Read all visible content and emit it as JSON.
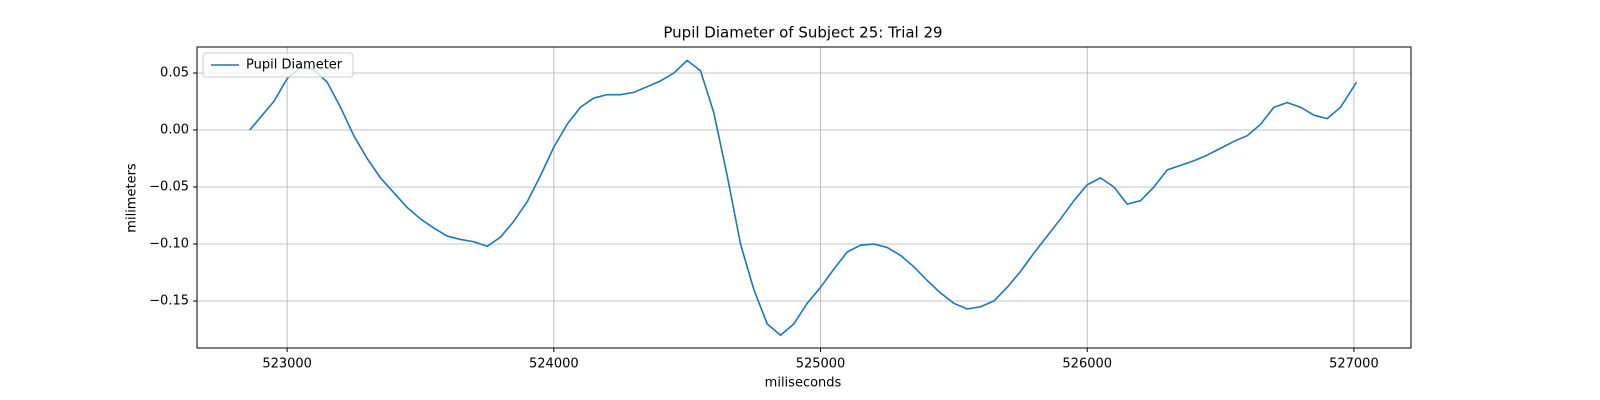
{
  "chart_data": {
    "type": "line",
    "title": "Pupil Diameter of Subject 25: Trial 29",
    "x_label": "miliseconds",
    "y_label": "milimeters",
    "x": [
      522860,
      522950,
      523000,
      523050,
      523100,
      523150,
      523200,
      523250,
      523300,
      523350,
      523400,
      523450,
      523500,
      523550,
      523600,
      523650,
      523700,
      523750,
      523800,
      523850,
      523900,
      523950,
      524000,
      524050,
      524100,
      524150,
      524200,
      524250,
      524300,
      524350,
      524400,
      524450,
      524500,
      524550,
      524600,
      524650,
      524700,
      524750,
      524800,
      524850,
      524900,
      524950,
      525000,
      525050,
      525100,
      525150,
      525200,
      525250,
      525300,
      525350,
      525400,
      525450,
      525500,
      525550,
      525600,
      525650,
      525700,
      525750,
      525800,
      525850,
      525900,
      525950,
      526000,
      526050,
      526100,
      526150,
      526200,
      526250,
      526300,
      526350,
      526400,
      526450,
      526500,
      526550,
      526600,
      526650,
      526700,
      526750,
      526800,
      526850,
      526900,
      526950,
      527010
    ],
    "series": [
      {
        "name": "Pupil Diameter",
        "color": "#1f77b4",
        "values": [
          0.0,
          0.025,
          0.045,
          0.055,
          0.053,
          0.042,
          0.02,
          -0.005,
          -0.025,
          -0.042,
          -0.055,
          -0.068,
          -0.078,
          -0.086,
          -0.093,
          -0.096,
          -0.098,
          -0.102,
          -0.094,
          -0.08,
          -0.063,
          -0.04,
          -0.015,
          0.005,
          0.02,
          0.028,
          0.031,
          0.031,
          0.033,
          0.038,
          0.043,
          0.05,
          0.061,
          0.052,
          0.015,
          -0.04,
          -0.1,
          -0.14,
          -0.17,
          -0.18,
          -0.17,
          -0.152,
          -0.138,
          -0.122,
          -0.107,
          -0.101,
          -0.1,
          -0.103,
          -0.11,
          -0.12,
          -0.132,
          -0.143,
          -0.152,
          -0.157,
          -0.155,
          -0.15,
          -0.138,
          -0.124,
          -0.108,
          -0.093,
          -0.078,
          -0.062,
          -0.048,
          -0.042,
          -0.05,
          -0.065,
          -0.062,
          -0.05,
          -0.035,
          -0.031,
          -0.027,
          -0.022,
          -0.016,
          -0.01,
          -0.005,
          0.005,
          0.02,
          0.024,
          0.02,
          0.013,
          0.01,
          0.02,
          0.042
        ]
      }
    ],
    "xlim": [
      522662,
      527214
    ],
    "ylim": [
      -0.1912,
      0.0728
    ],
    "xticks": [
      523000,
      524000,
      525000,
      526000,
      527000
    ],
    "yticks": [
      0.05,
      {
        "value": 0,
        "label": "0.00"
      },
      {
        "value": -0.05,
        "label": "−0.05"
      },
      {
        "value": -0.1,
        "label": "−0.10"
      },
      {
        "value": -0.15,
        "label": "−0.15"
      }
    ],
    "grid": true,
    "legend": "upper left"
  }
}
